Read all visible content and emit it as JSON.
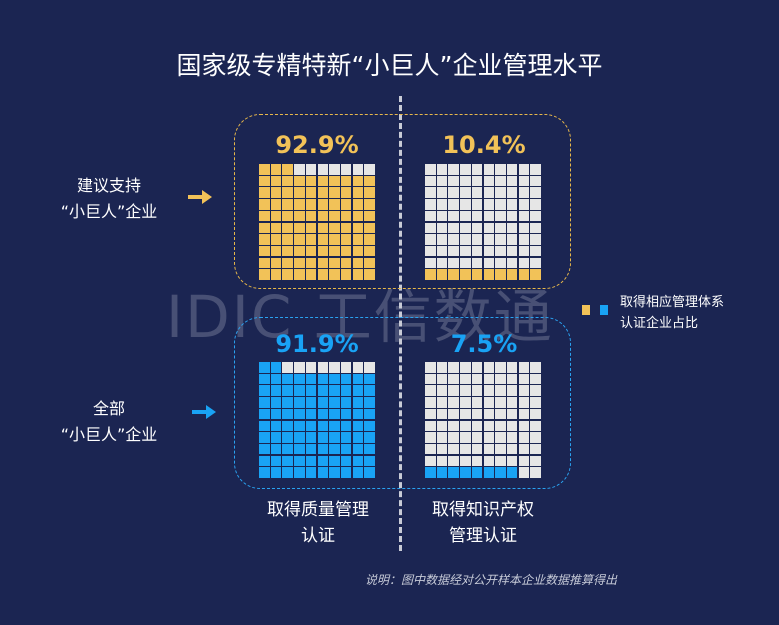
{
  "title": "国家级专精特新“小巨人”企业管理水平",
  "watermark": "IDIC 工信数通",
  "rows": [
    {
      "line1": "建议支持",
      "line2": "“小巨人”企业"
    },
    {
      "line1": "全部",
      "line2": "“小巨人”企业"
    }
  ],
  "columns": [
    {
      "line1": "取得质量管理",
      "line2": "认证"
    },
    {
      "line1": "取得知识产权",
      "line2": "管理认证"
    }
  ],
  "legend": {
    "line1": "取得相应管理体系",
    "line2": "认证企业占比"
  },
  "note": "说明：图中数据经对公开样本企业数据推算得出",
  "colors": {
    "background": "#1b2552",
    "gold": "#f2c258",
    "blue": "#19a3f5",
    "empty": "#e6e6e6"
  },
  "chart_data": {
    "type": "waffle",
    "grid_size": 10,
    "categories": [
      "取得质量管理认证",
      "取得知识产权管理认证"
    ],
    "series": [
      {
        "name": "建议支持“小巨人”企业",
        "values": [
          92.9,
          10.4
        ],
        "labels": [
          "92.9%",
          "10.4%"
        ],
        "color": "#f2c258"
      },
      {
        "name": "全部“小巨人”企业",
        "values": [
          91.9,
          7.5
        ],
        "labels": [
          "91.9%",
          "7.5%"
        ],
        "color": "#19a3f5"
      }
    ]
  }
}
